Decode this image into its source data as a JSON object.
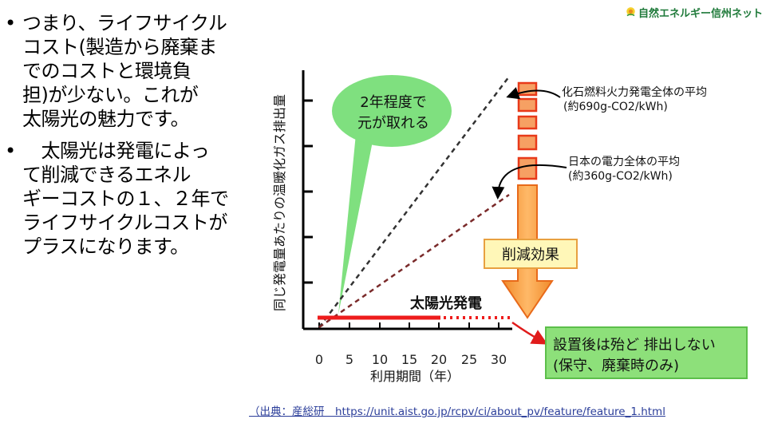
{
  "logo": {
    "text": "自然エネルギー信州ネット",
    "icon": "sun-flower-logo-icon"
  },
  "bullets": [
    {
      "lines": [
        "つまり、ライフサイクル",
        "コスト(製造から廃棄ま",
        "でのコストと環境負",
        "担)が少ない。これが",
        "太陽光の魅力です。"
      ]
    },
    {
      "lines": [
        "　太陽光は発電によっ",
        "て削減できるエネル",
        "ギーコストの１、２年で",
        "ライフサイクルコストが",
        "プラスになります。"
      ]
    }
  ],
  "chart": {
    "ylabel": "同じ発電量あたりの温暖化ガス排出量",
    "xlabel": "利用期間（年）",
    "x_ticks": [
      "0",
      "5",
      "10",
      "15",
      "20",
      "25",
      "30"
    ],
    "bubble": {
      "line1": "2年程度で",
      "line2": "元が取れる"
    },
    "fossil": {
      "line1": "化石燃料火力発電全体の平均",
      "line2": "(約690g-CO2/kWh)"
    },
    "japan": {
      "line1": "日本の電力全体の平均",
      "line2": "(約360g-CO2/kWh)"
    },
    "reduction_label": "削減効果",
    "solar_label": "太陽光発電",
    "note": {
      "line1": "設置後は殆ど 排出しない",
      "line2": "(保守、廃棄時のみ)"
    }
  },
  "source": {
    "prefix": "（出典：産総研　",
    "url": "https://unit.aist.go.jp/rcpv/ci/about_pv/feature/feature_1.html"
  }
}
